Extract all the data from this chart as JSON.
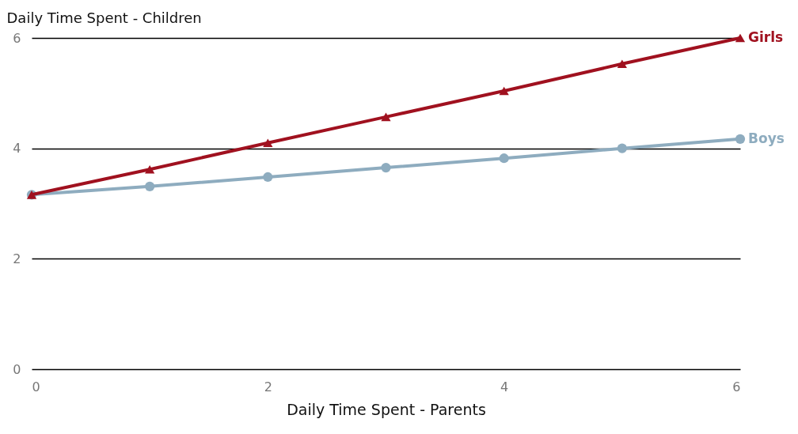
{
  "chart_data": {
    "type": "line",
    "xlabel": "Daily Time Spent - Parents",
    "ylabel": "Daily Time Spent - Children",
    "x": [
      0,
      1,
      2,
      3,
      4,
      5,
      6
    ],
    "series": [
      {
        "name": "Girls",
        "color": "#a0111f",
        "marker": "triangle",
        "values": [
          3.16,
          3.62,
          4.1,
          4.57,
          5.04,
          5.53,
          6.0
        ]
      },
      {
        "name": "Boys",
        "color": "#8eacbf",
        "marker": "circle",
        "values": [
          3.16,
          3.31,
          3.48,
          3.65,
          3.82,
          4.0,
          4.17
        ]
      }
    ],
    "xlim": [
      0,
      6
    ],
    "xticks": [
      0,
      2,
      4,
      6
    ],
    "ylim": [
      0,
      6
    ],
    "yticks": [
      0,
      2,
      4,
      6
    ],
    "grid": "y"
  }
}
